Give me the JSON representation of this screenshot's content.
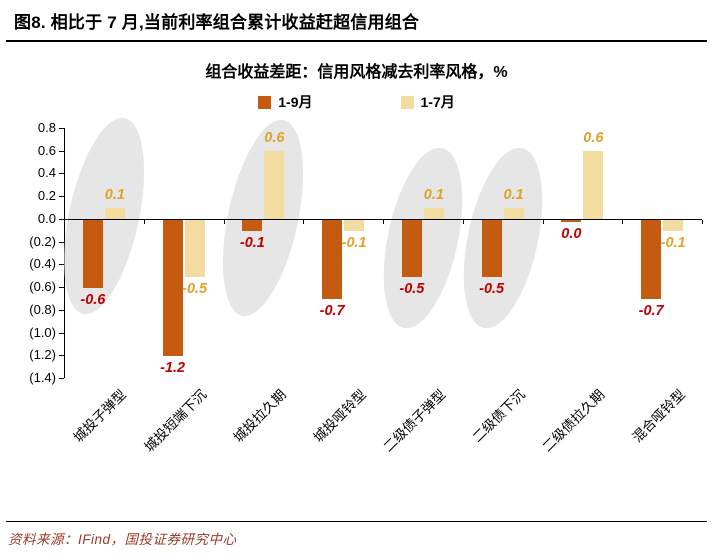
{
  "header": {
    "title": "图8. 相比于 7 月,当前利率组合累计收益赶超信用组合"
  },
  "chart": {
    "title": "组合收益差距：信用风格减去利率风格，%",
    "legend": [
      {
        "label": "1-9月",
        "color": "#C55A11"
      },
      {
        "label": "1-7月",
        "color": "#F3DCA0"
      }
    ]
  },
  "chart_data": {
    "type": "bar",
    "title": "组合收益差距：信用风格减去利率风格，%",
    "categories": [
      "城投子弹型",
      "城投短端下沉",
      "城投拉久期",
      "城投哑铃型",
      "二级债子弹型",
      "二级债下沉",
      "二级债拉久期",
      "混合哑铃型"
    ],
    "series": [
      {
        "name": "1-9月",
        "color": "#C55A11",
        "label_color": "#C00000",
        "values": [
          -0.6,
          -1.2,
          -0.1,
          -0.7,
          -0.5,
          -0.5,
          0.0,
          -0.7
        ],
        "labels": [
          "-0.6",
          "-1.2",
          "-0.1",
          "-0.7",
          "-0.5",
          "-0.5",
          "0.0",
          "-0.7"
        ]
      },
      {
        "name": "1-7月",
        "color": "#F3DCA0",
        "label_color": "#DFA32A",
        "values": [
          0.1,
          -0.5,
          0.6,
          -0.1,
          0.1,
          0.1,
          0.6,
          -0.1
        ],
        "labels": [
          "0.1",
          "-0.5",
          "0.6",
          "-0.1",
          "0.1",
          "0.1",
          "0.6",
          "-0.1"
        ]
      }
    ],
    "ylim": [
      -1.4,
      0.8
    ],
    "yticks": [
      0.8,
      0.6,
      0.4,
      0.2,
      0.0,
      -0.2,
      -0.4,
      -0.6,
      -0.8,
      -1.0,
      -1.2,
      -1.4
    ],
    "ytick_labels": [
      "0.8",
      "0.6",
      "0.4",
      "0.2",
      "0.0",
      "(0.2)",
      "(0.4)",
      "(0.6)",
      "(0.8)",
      "(1.0)",
      "(1.2)",
      "(1.4)"
    ],
    "highlight_groups": [
      0,
      2,
      4,
      5
    ],
    "grid": false,
    "legend_position": "top"
  },
  "footer": {
    "source": "资料来源：IFind，国投证券研究中心"
  }
}
